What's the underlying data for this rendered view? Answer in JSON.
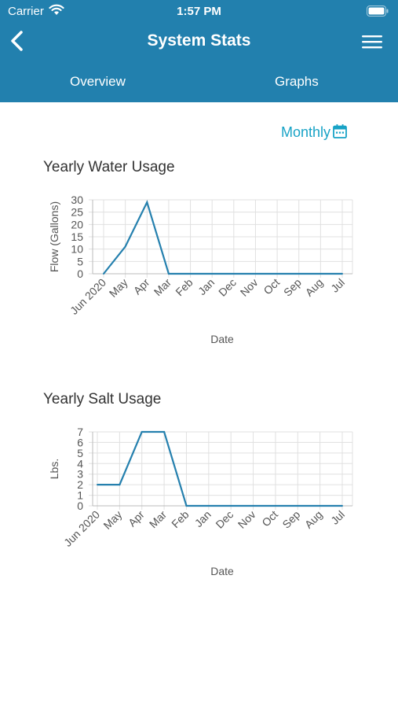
{
  "status": {
    "carrier": "Carrier",
    "time": "1:57 PM"
  },
  "nav": {
    "title": "System Stats",
    "back_icon": "chevron-left-icon",
    "menu_icon": "hamburger-menu-icon"
  },
  "tabs": [
    {
      "label": "Overview"
    },
    {
      "label": "Graphs"
    }
  ],
  "period": {
    "label": "Monthly",
    "icon": "calendar-icon"
  },
  "colors": {
    "header": "#2280ae",
    "accent": "#18a3c6",
    "line": "#2580ae",
    "grid": "#e0e0e0"
  },
  "chart_data": [
    {
      "type": "line",
      "title": "Yearly Water Usage",
      "xlabel": "Date",
      "ylabel": "Flow (Gallons)",
      "categories": [
        "Jun 2020",
        "May",
        "Apr",
        "Mar",
        "Feb",
        "Jan",
        "Dec",
        "Nov",
        "Oct",
        "Sep",
        "Aug",
        "Jul"
      ],
      "values": [
        0,
        11,
        29,
        0,
        0,
        0,
        0,
        0,
        0,
        0,
        0,
        0
      ],
      "yticks": [
        0,
        5,
        10,
        15,
        20,
        25,
        30
      ],
      "ylim": [
        0,
        30
      ],
      "grid": true,
      "legend": "none"
    },
    {
      "type": "line",
      "title": "Yearly Salt Usage",
      "xlabel": "Date",
      "ylabel": "Lbs.",
      "categories": [
        "Jun 2020",
        "May",
        "Apr",
        "Mar",
        "Feb",
        "Jan",
        "Dec",
        "Nov",
        "Oct",
        "Sep",
        "Aug",
        "Jul"
      ],
      "values": [
        2,
        2,
        7,
        7,
        0,
        0,
        0,
        0,
        0,
        0,
        0,
        0
      ],
      "yticks": [
        0,
        1,
        2,
        3,
        4,
        5,
        6,
        7
      ],
      "ylim": [
        0,
        7
      ],
      "grid": true,
      "legend": "none"
    }
  ]
}
